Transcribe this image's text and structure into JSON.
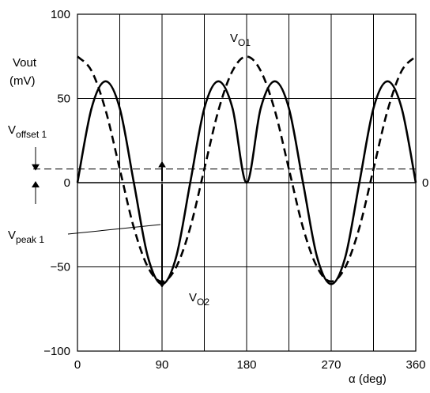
{
  "chart_data": {
    "type": "line",
    "xlabel": "α (deg)",
    "ylabel": "Vout",
    "ylabel_unit": "(mV)",
    "xlim": [
      0,
      360
    ],
    "ylim": [
      -100,
      100
    ],
    "x_ticks": [
      0,
      90,
      180,
      270,
      360
    ],
    "x_tick_labels": [
      "0",
      "90",
      "180",
      "270",
      "360"
    ],
    "y_ticks": [
      -100,
      -50,
      0,
      50,
      100
    ],
    "y_tick_labels": [
      "−100",
      "−50",
      "0",
      "50",
      "100"
    ],
    "right_tick_label": "0",
    "grid": true,
    "series": [
      {
        "name": "VO1",
        "label_main": "V",
        "label_sub": "O1",
        "style": "dashed",
        "x": [
          0,
          15,
          30,
          45,
          60,
          75,
          90,
          105,
          120,
          135,
          150,
          165,
          180,
          195,
          210,
          225,
          240,
          255,
          270,
          285,
          300,
          315,
          330,
          345,
          360
        ],
        "values": [
          74.9,
          66.4,
          42.9,
          8.1,
          -26.7,
          -50.2,
          -58.7,
          -50.2,
          -26.7,
          8.1,
          42.9,
          66.4,
          74.9,
          66.4,
          42.9,
          8.1,
          -26.7,
          -50.2,
          -58.7,
          -50.2,
          -26.7,
          8.1,
          42.9,
          66.4,
          74.9
        ]
      },
      {
        "name": "VO2",
        "label_main": "V",
        "label_sub": "O2",
        "style": "solid",
        "x": [
          0,
          15,
          30,
          45,
          60,
          75,
          90,
          105,
          120,
          135,
          150,
          165,
          180,
          195,
          210,
          225,
          240,
          255,
          270,
          285,
          300,
          315,
          330,
          345,
          360
        ],
        "values": [
          0,
          44.2,
          60.2,
          44.2,
          0,
          -44.2,
          -60.2,
          -44.2,
          0,
          44.2,
          60.2,
          44.2,
          0,
          44.2,
          60.2,
          44.2,
          0,
          -44.2,
          -60.2,
          -44.2,
          0,
          44.2,
          60.2,
          44.2,
          0
        ]
      }
    ],
    "offset_line": {
      "value": 8.1,
      "style": "dashed"
    },
    "annotations": {
      "offset": {
        "main": "V",
        "sub": "offset 1"
      },
      "peak": {
        "main": "V",
        "sub": "peak 1",
        "x": 90,
        "from": 8.1,
        "to": -58.7
      }
    }
  }
}
